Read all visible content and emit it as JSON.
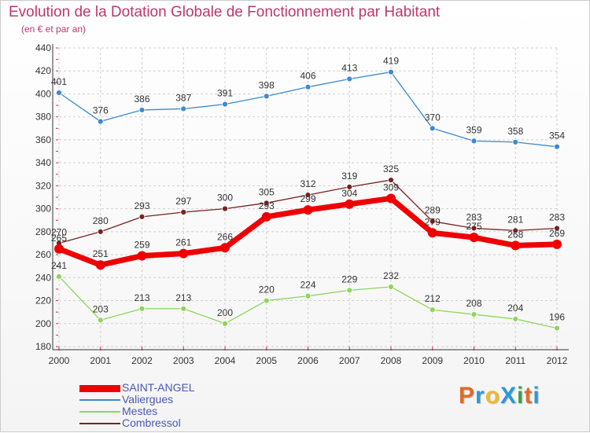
{
  "title": "Evolution de la Dotation Globale de Fonctionnement par Habitant",
  "subtitle": "(en € et par an)",
  "logo_text": "ProXiti",
  "logo_colors": [
    "#e06a28",
    "#2a9ad7",
    "#f1b82a",
    "#2a9ad7",
    "#3aa04e",
    "#e06a28",
    "#2a9ad7"
  ],
  "colors": {
    "grid": "#d0d0d0",
    "axis": "#333333",
    "tick_text": "#333333",
    "axis_tick_marks": "#e0205a",
    "title": "#c2356f",
    "legend_text": "#4b57b8"
  },
  "chart_data": {
    "type": "line",
    "title": "Evolution de la Dotation Globale de Fonctionnement par Habitant",
    "subtitle": "(en € et par an)",
    "xlabel": "",
    "ylabel": "",
    "x": [
      "2000",
      "2001",
      "2002",
      "2003",
      "2004",
      "2005",
      "2006",
      "2007",
      "2008",
      "2009",
      "2010",
      "2011",
      "2012"
    ],
    "ylim": [
      180,
      440
    ],
    "yticks": [
      180,
      200,
      220,
      240,
      260,
      280,
      300,
      320,
      340,
      360,
      380,
      400,
      420,
      440
    ],
    "grid": true,
    "legend_position": "bottom-left",
    "series": [
      {
        "name": "SAINT-ANGEL",
        "color": "#ee0000",
        "values": [
          265,
          251,
          259,
          261,
          266,
          293,
          299,
          304,
          309,
          279,
          275,
          268,
          269
        ]
      },
      {
        "name": "Valiergues",
        "color": "#3d8ad0",
        "values": [
          401,
          376,
          386,
          387,
          391,
          398,
          406,
          413,
          419,
          370,
          359,
          358,
          354
        ]
      },
      {
        "name": "Mestes",
        "color": "#8fd45c",
        "values": [
          241,
          203,
          213,
          213,
          200,
          220,
          224,
          229,
          232,
          212,
          208,
          204,
          196
        ]
      },
      {
        "name": "Combressol",
        "color": "#7a2020",
        "values": [
          270,
          280,
          293,
          297,
          300,
          305,
          312,
          319,
          325,
          289,
          283,
          281,
          283
        ]
      }
    ]
  }
}
